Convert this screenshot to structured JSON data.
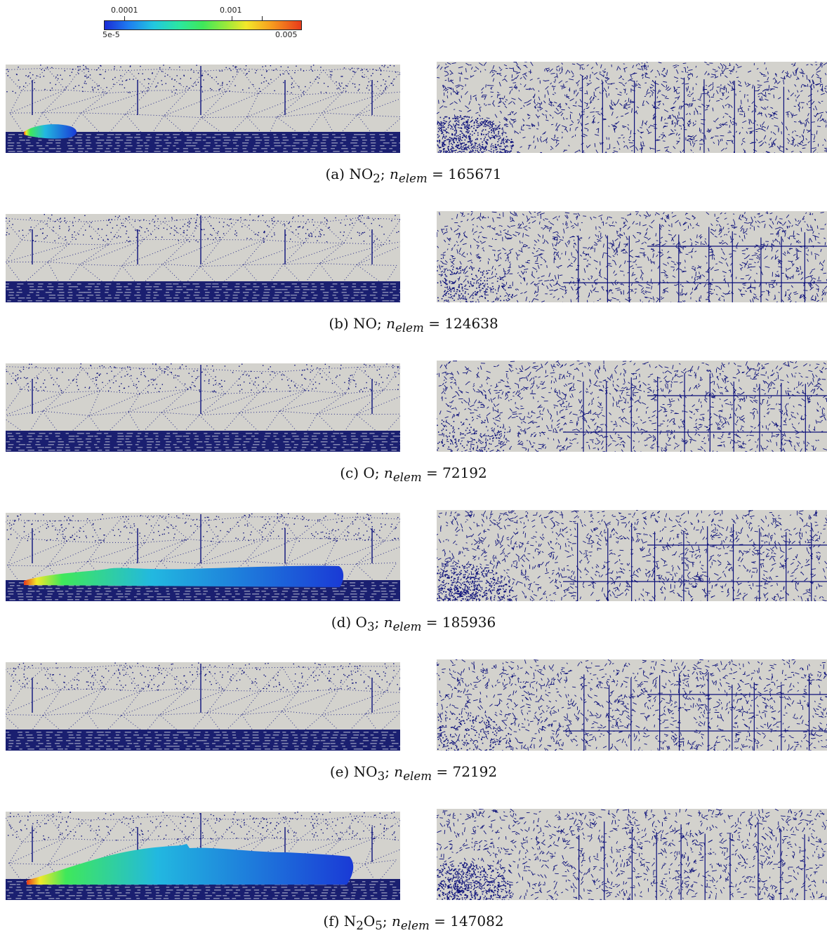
{
  "colorbar": {
    "min_label": "5e-5",
    "max_label": "0.005",
    "tick_labels": [
      "0.0001",
      "0.001"
    ],
    "colors": [
      "#1a2bd6",
      "#22c7e0",
      "#3fe85a",
      "#f2e82a",
      "#e83a1a"
    ]
  },
  "rows": [
    {
      "label": "(a)",
      "species": "NO",
      "sub": "2",
      "var": "n",
      "var_sub": "elem",
      "eq": "= 165671",
      "plume": "small"
    },
    {
      "label": "(b)",
      "species": "NO",
      "sub": "",
      "var": "n",
      "var_sub": "elem",
      "eq": "= 124638",
      "plume": "none"
    },
    {
      "label": "(c)",
      "species": "O",
      "sub": "",
      "var": "n",
      "var_sub": "elem",
      "eq": "= 72192",
      "plume": "none"
    },
    {
      "label": "(d)",
      "species": "O",
      "sub": "3",
      "var": "n",
      "var_sub": "elem",
      "eq": "= 185936",
      "plume": "long"
    },
    {
      "label": "(e)",
      "species": "NO",
      "sub": "3",
      "var": "n",
      "var_sub": "elem",
      "eq": "= 72192",
      "plume": "none"
    },
    {
      "label": "(f)",
      "species": "N",
      "sub": "2",
      "species2": "O",
      "sub2": "5",
      "var": "n",
      "var_sub": "elem",
      "eq": "= 147082",
      "plume": "large"
    }
  ],
  "mesh_colors": {
    "background": "#d3d2cd",
    "mesh": "#0b0f7a"
  }
}
